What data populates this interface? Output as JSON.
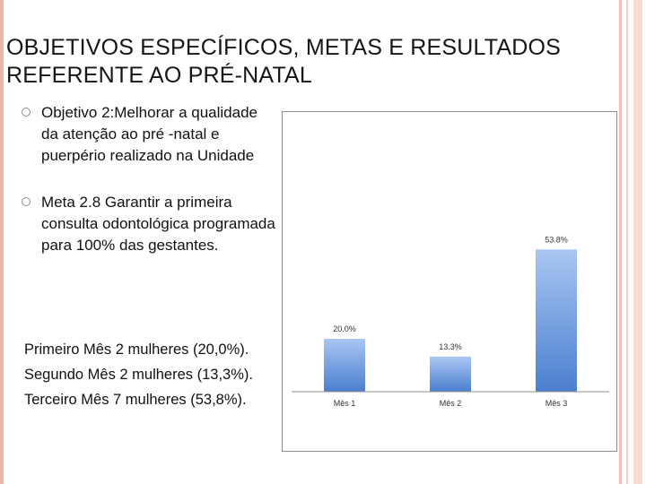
{
  "slide": {
    "title_line1": "OBJETIVOS ESPECÍFICOS, METAS E RESULTADOS",
    "title_line2": "REFERENTE AO PRÉ-NATAL",
    "bullets": [
      "Objetivo 2:Melhorar a qualidade da atenção ao pré -natal e puerpério realizado na Unidade",
      "Meta 2.8 Garantir a primeira consulta odontológica programada para 100% das gestantes."
    ],
    "results": [
      "Primeiro Mês 2 mulheres (20,0%).",
      "Segundo Mês 2 mulheres (13,3%).",
      "Terceiro Mês 7 mulheres (53,8%)."
    ]
  },
  "colors": {
    "bar_top": "#a9c6f2",
    "bar_bottom": "#4a7fcf",
    "accent_border": "#e9b8a8"
  },
  "chart_data": {
    "type": "bar",
    "categories": [
      "Mês 1",
      "Mês 2",
      "Mês 3"
    ],
    "values": [
      20.0,
      13.3,
      53.8
    ],
    "data_labels": [
      "20.0%",
      "13.3%",
      "53.8%"
    ],
    "title": "",
    "xlabel": "",
    "ylabel": "",
    "ylim": [
      0,
      100
    ],
    "grid": false,
    "legend": "none"
  }
}
